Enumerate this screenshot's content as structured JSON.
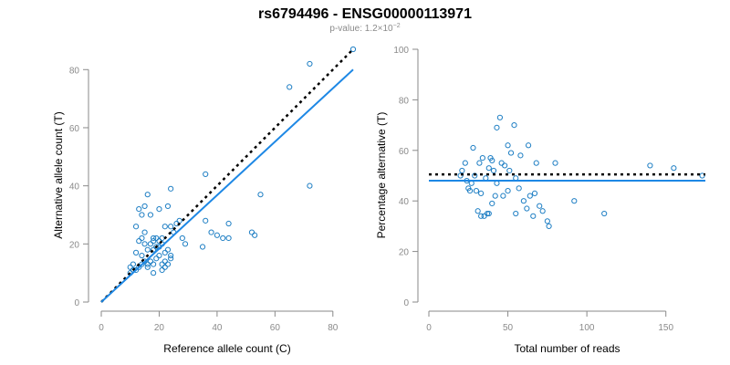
{
  "figure": {
    "title": "rs6794496 - ENSG00000113971",
    "subtitle_prefix": "p-value: 1.2×10",
    "subtitle_exponent": "−2",
    "point_color": "#1f7fc4",
    "fit_color": "#1e88e5",
    "reference_color": "#000000"
  },
  "chart_data": [
    {
      "type": "scatter",
      "title": "",
      "xlabel": "Reference allele count (C)",
      "ylabel": "Alternative allele count (T)",
      "xlim": [
        0,
        87
      ],
      "ylim": [
        0,
        87
      ],
      "xticks": [
        0,
        20,
        40,
        60,
        80
      ],
      "yticks": [
        0,
        20,
        40,
        60,
        80
      ],
      "grid": false,
      "points": [
        [
          10,
          12
        ],
        [
          11,
          11
        ],
        [
          12,
          11
        ],
        [
          13,
          12
        ],
        [
          10,
          10
        ],
        [
          14,
          13
        ],
        [
          15,
          14
        ],
        [
          16,
          13
        ],
        [
          17,
          14
        ],
        [
          18,
          13
        ],
        [
          19,
          15
        ],
        [
          20,
          16
        ],
        [
          16,
          12
        ],
        [
          18,
          10
        ],
        [
          21,
          11
        ],
        [
          22,
          12
        ],
        [
          22,
          14
        ],
        [
          23,
          13
        ],
        [
          24,
          15
        ],
        [
          24,
          16
        ],
        [
          12,
          17
        ],
        [
          14,
          16
        ],
        [
          16,
          18
        ],
        [
          18,
          18
        ],
        [
          19,
          19
        ],
        [
          20,
          19
        ],
        [
          21,
          22
        ],
        [
          18,
          22
        ],
        [
          17,
          20
        ],
        [
          15,
          20
        ],
        [
          13,
          21
        ],
        [
          12,
          26
        ],
        [
          15,
          24
        ],
        [
          17,
          30
        ],
        [
          18,
          21
        ],
        [
          19,
          22
        ],
        [
          20,
          21
        ],
        [
          21,
          20
        ],
        [
          22,
          17
        ],
        [
          23,
          18
        ],
        [
          24,
          26
        ],
        [
          25,
          24
        ],
        [
          26,
          27
        ],
        [
          27,
          28
        ],
        [
          28,
          22
        ],
        [
          29,
          20
        ],
        [
          23,
          33
        ],
        [
          24,
          39
        ],
        [
          20,
          32
        ],
        [
          16,
          37
        ],
        [
          13,
          32
        ],
        [
          14,
          30
        ],
        [
          15,
          33
        ],
        [
          35,
          19
        ],
        [
          36,
          28
        ],
        [
          36,
          44
        ],
        [
          38,
          24
        ],
        [
          40,
          23
        ],
        [
          42,
          22
        ],
        [
          44,
          27
        ],
        [
          44,
          22
        ],
        [
          52,
          24
        ],
        [
          53,
          23
        ],
        [
          55,
          37
        ],
        [
          65,
          74
        ],
        [
          72,
          82
        ],
        [
          72,
          40
        ],
        [
          87,
          87
        ],
        [
          22,
          26
        ],
        [
          21,
          13
        ],
        [
          14,
          22
        ],
        [
          11,
          13
        ]
      ],
      "series": [
        {
          "kind": "reference",
          "style": "dotted",
          "x": [
            0,
            87
          ],
          "y": [
            0,
            87
          ]
        },
        {
          "kind": "fit",
          "style": "solid",
          "x": [
            0,
            87
          ],
          "y": [
            0,
            80
          ]
        }
      ]
    },
    {
      "type": "scatter",
      "title": "",
      "xlabel": "Total number of reads",
      "ylabel": "Percentage alternative (T)",
      "xlim": [
        0,
        175
      ],
      "ylim": [
        0,
        100
      ],
      "xticks": [
        0,
        50,
        100,
        150
      ],
      "yticks": [
        0,
        20,
        40,
        60,
        80,
        100
      ],
      "grid": false,
      "points": [
        [
          20,
          50
        ],
        [
          21,
          52
        ],
        [
          23,
          55
        ],
        [
          24,
          48
        ],
        [
          25,
          45
        ],
        [
          26,
          44
        ],
        [
          27,
          47
        ],
        [
          28,
          61
        ],
        [
          29,
          50
        ],
        [
          30,
          44
        ],
        [
          31,
          36
        ],
        [
          32,
          55
        ],
        [
          33,
          43
        ],
        [
          34,
          57
        ],
        [
          35,
          34
        ],
        [
          36,
          49
        ],
        [
          37,
          35
        ],
        [
          38,
          53
        ],
        [
          39,
          57
        ],
        [
          40,
          56
        ],
        [
          40,
          39
        ],
        [
          41,
          52
        ],
        [
          42,
          42
        ],
        [
          43,
          47
        ],
        [
          43,
          69
        ],
        [
          45,
          73
        ],
        [
          46,
          55
        ],
        [
          47,
          42
        ],
        [
          48,
          54
        ],
        [
          50,
          62
        ],
        [
          50,
          44
        ],
        [
          51,
          52
        ],
        [
          52,
          59
        ],
        [
          54,
          70
        ],
        [
          55,
          49
        ],
        [
          55,
          35
        ],
        [
          57,
          45
        ],
        [
          58,
          58
        ],
        [
          60,
          40
        ],
        [
          62,
          37
        ],
        [
          63,
          62
        ],
        [
          64,
          42
        ],
        [
          66,
          34
        ],
        [
          67,
          43
        ],
        [
          68,
          55
        ],
        [
          70,
          38
        ],
        [
          72,
          36
        ],
        [
          75,
          32
        ],
        [
          76,
          30
        ],
        [
          80,
          55
        ],
        [
          92,
          40
        ],
        [
          111,
          35
        ],
        [
          140,
          54
        ],
        [
          155,
          53
        ],
        [
          173,
          50
        ],
        [
          33,
          34
        ],
        [
          38,
          35
        ]
      ],
      "series": [
        {
          "kind": "reference",
          "style": "dotted",
          "x": [
            0,
            175
          ],
          "y": [
            50.5,
            50.5
          ]
        },
        {
          "kind": "fit",
          "style": "solid",
          "x": [
            0,
            175
          ],
          "y": [
            48,
            48
          ]
        }
      ]
    }
  ]
}
